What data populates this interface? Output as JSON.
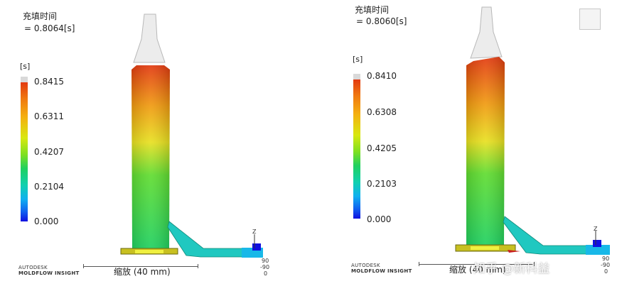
{
  "left": {
    "fill_time_label": "充填时间",
    "fill_time_value": "= 0.8064[s]",
    "unit": "[s]",
    "legend_ticks": [
      "0.8415",
      "0.6311",
      "0.4207",
      "0.2104",
      "0.000"
    ],
    "brand_line1": "AUTODESK",
    "brand_line2": "MOLDFLOW INSIGHT",
    "scale_label": "缩放 (40 mm)",
    "axis_z": "Z",
    "axis_vals": [
      "90",
      "-90",
      "0"
    ]
  },
  "right": {
    "fill_time_label": "充填时间",
    "fill_time_value": "= 0.8060[s]",
    "unit": "[s]",
    "legend_ticks": [
      "0.8410",
      "0.6308",
      "0.4205",
      "0.2103",
      "0.000"
    ],
    "brand_line1": "AUTODESK",
    "brand_line2": "MOLDFLOW INSIGHT",
    "scale_label": "缩放 (40 mm)",
    "axis_z": "Z",
    "axis_vals": [
      "90",
      "-90",
      "0"
    ],
    "watermark": "知乎 @新科益"
  },
  "colors": {
    "top": "#e23a10",
    "mid": "#e8e020",
    "bottom": "#20d060",
    "runner": "#20c8e8",
    "base": "#c8c020"
  }
}
